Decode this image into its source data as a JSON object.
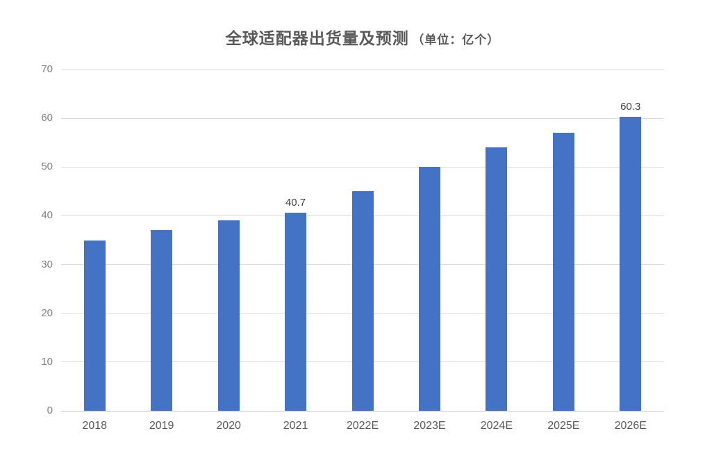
{
  "chart_data": {
    "type": "bar",
    "title_main": "全球适配器出货量及预测",
    "title_unit": "（单位：亿个）",
    "title_full": "全球适配器出货量及预测（单位：亿个）",
    "categories": [
      "2018",
      "2019",
      "2020",
      "2021",
      "2022E",
      "2023E",
      "2024E",
      "2025E",
      "2026E"
    ],
    "values": [
      35,
      37,
      39,
      40.7,
      45,
      50,
      54,
      57,
      60.3
    ],
    "point_labels": [
      "",
      "",
      "",
      "40.7",
      "",
      "",
      "",
      "",
      "60.3"
    ],
    "xlabel": "",
    "ylabel": "",
    "ylim": [
      0,
      70
    ],
    "yticks": [
      0,
      10,
      20,
      30,
      40,
      50,
      60,
      70
    ],
    "grid": "horizontal",
    "legend": "none",
    "colors": {
      "bar": "#4472C4",
      "gridline": "#dcdcdc",
      "axis_line": "#c9c9c9",
      "title": "#595959",
      "y_tick_label": "#7f7f7f",
      "x_category_label": "#595959",
      "point_label": "#404040",
      "background": "#ffffff"
    }
  }
}
